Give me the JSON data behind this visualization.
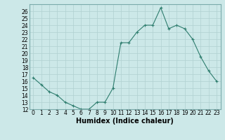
{
  "x": [
    0,
    1,
    2,
    3,
    4,
    5,
    6,
    7,
    8,
    9,
    10,
    11,
    12,
    13,
    14,
    15,
    16,
    17,
    18,
    19,
    20,
    21,
    22,
    23
  ],
  "y": [
    16.5,
    15.5,
    14.5,
    14.0,
    13.0,
    12.5,
    12.0,
    12.0,
    13.0,
    13.0,
    15.0,
    21.5,
    21.5,
    23.0,
    24.0,
    24.0,
    26.5,
    23.5,
    24.0,
    23.5,
    22.0,
    19.5,
    17.5,
    16.0
  ],
  "line_color": "#2e7d6e",
  "marker_color": "#2e7d6e",
  "bg_color": "#cce8e8",
  "grid_major_color": "#b0d0d0",
  "grid_minor_color": "#d8eaea",
  "xlabel": "Humidex (Indice chaleur)",
  "xlim": [
    -0.5,
    23.5
  ],
  "ylim": [
    12,
    27
  ],
  "yticks": [
    12,
    13,
    14,
    15,
    16,
    17,
    18,
    19,
    20,
    21,
    22,
    23,
    24,
    25,
    26
  ],
  "xticks": [
    0,
    1,
    2,
    3,
    4,
    5,
    6,
    7,
    8,
    9,
    10,
    11,
    12,
    13,
    14,
    15,
    16,
    17,
    18,
    19,
    20,
    21,
    22,
    23
  ],
  "tick_fontsize": 5.5,
  "xlabel_fontsize": 7.0
}
